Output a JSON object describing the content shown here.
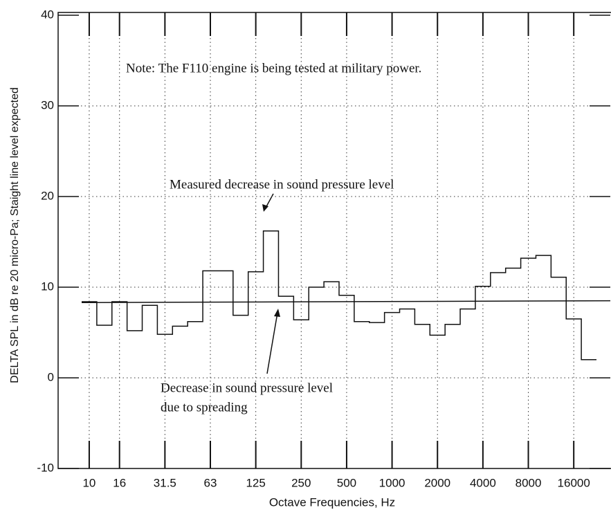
{
  "chart_data": {
    "type": "step",
    "ylabel": "DELTA SPL in dB re 20 micro-Pa; Staight line level expected",
    "xlabel": "Octave Frequencies, Hz",
    "categories": [
      "10",
      null,
      "16",
      null,
      null,
      "31.5",
      null,
      null,
      "63",
      null,
      null,
      "125",
      null,
      null,
      "250",
      null,
      null,
      "500",
      null,
      null,
      "1000",
      null,
      null,
      "2000",
      null,
      null,
      "4000",
      null,
      null,
      "8000",
      null,
      null,
      "16000",
      null
    ],
    "series": [
      {
        "values": [
          8.4,
          5.8,
          8.4,
          5.2,
          8.0,
          4.8,
          5.7,
          6.2,
          11.8,
          11.8,
          6.9,
          11.7,
          16.2,
          9.0,
          6.4,
          10.0,
          10.6,
          9.1,
          6.2,
          6.1,
          7.2,
          7.6,
          5.9,
          4.7,
          5.9,
          7.6,
          10.1,
          11.6,
          12.1,
          13.2,
          13.5,
          11.1,
          6.5,
          2.0
        ],
        "color": "#111"
      }
    ],
    "reference_line": {
      "values": [
        8.3,
        8.5
      ],
      "color": "#111"
    },
    "ylim": [
      -10,
      40
    ],
    "yticks": [
      -10,
      0,
      10,
      20,
      30,
      40
    ],
    "grid": true,
    "annotations": [
      "Note:  The F110 engine is being tested at military power.",
      "Measured decrease in sound pressure level",
      "Decrease in sound pressure level",
      "due to spreading"
    ]
  }
}
